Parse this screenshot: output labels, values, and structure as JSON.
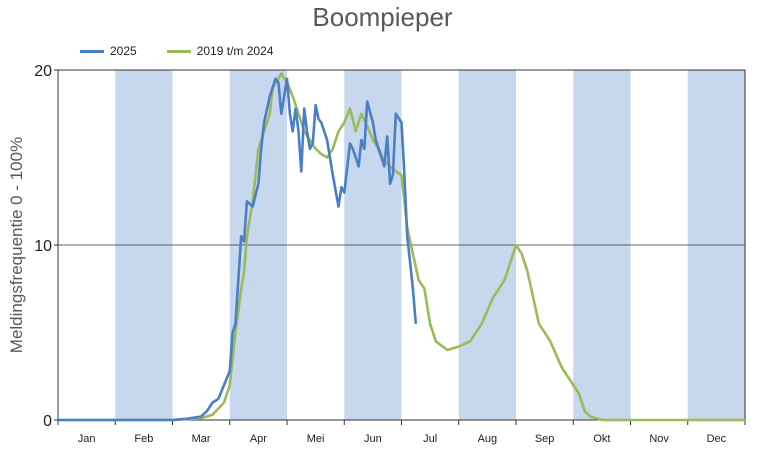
{
  "chart_data": {
    "type": "line",
    "title": "Boompieper",
    "xlabel": "",
    "ylabel": "Meldingsfrequentie 0 - 100%",
    "ylim": [
      0,
      20
    ],
    "yticks": [
      0,
      10,
      20
    ],
    "months": [
      "Jan",
      "Feb",
      "Mar",
      "Apr",
      "Mei",
      "Jun",
      "Jul",
      "Aug",
      "Sep",
      "Okt",
      "Nov",
      "Dec"
    ],
    "shaded_bands": "alternate months (Feb, Apr, Jun, Aug, Okt, Dec)",
    "band_color": "#c6d7ee",
    "grid": "horizontal line at 10",
    "legend_position": "top-left",
    "series": [
      {
        "name": "2025",
        "color": "#4a7ec6",
        "points": [
          [
            0,
            0
          ],
          [
            0.5,
            0
          ],
          [
            1,
            0
          ],
          [
            1.5,
            0
          ],
          [
            2,
            0
          ],
          [
            2.2,
            0.05
          ],
          [
            2.5,
            0.2
          ],
          [
            2.6,
            0.5
          ],
          [
            2.7,
            1
          ],
          [
            2.8,
            1.2
          ],
          [
            2.9,
            2
          ],
          [
            3,
            2.8
          ],
          [
            3.05,
            5
          ],
          [
            3.1,
            5.5
          ],
          [
            3.15,
            8
          ],
          [
            3.2,
            10.5
          ],
          [
            3.25,
            10.2
          ],
          [
            3.3,
            12.5
          ],
          [
            3.4,
            12.2
          ],
          [
            3.5,
            13.5
          ],
          [
            3.55,
            15.5
          ],
          [
            3.6,
            17
          ],
          [
            3.7,
            18.5
          ],
          [
            3.8,
            19.5
          ],
          [
            3.85,
            19.3
          ],
          [
            3.9,
            17.5
          ],
          [
            3.95,
            18.5
          ],
          [
            4,
            19.5
          ],
          [
            4.05,
            17.5
          ],
          [
            4.1,
            16.5
          ],
          [
            4.15,
            17.8
          ],
          [
            4.2,
            16.5
          ],
          [
            4.25,
            14.2
          ],
          [
            4.3,
            17.8
          ],
          [
            4.35,
            16.5
          ],
          [
            4.4,
            15.5
          ],
          [
            4.45,
            15.8
          ],
          [
            4.5,
            18
          ],
          [
            4.55,
            17.2
          ],
          [
            4.6,
            17
          ],
          [
            4.7,
            16
          ],
          [
            4.8,
            14
          ],
          [
            4.9,
            12.2
          ],
          [
            4.95,
            13.3
          ],
          [
            5,
            13
          ],
          [
            5.1,
            15.8
          ],
          [
            5.15,
            15.5
          ],
          [
            5.2,
            15
          ],
          [
            5.25,
            14.5
          ],
          [
            5.3,
            16
          ],
          [
            5.35,
            15.5
          ],
          [
            5.4,
            18.2
          ],
          [
            5.5,
            17
          ],
          [
            5.55,
            16
          ],
          [
            5.6,
            15.5
          ],
          [
            5.7,
            14.5
          ],
          [
            5.75,
            16.2
          ],
          [
            5.8,
            13.5
          ],
          [
            5.85,
            14
          ],
          [
            5.9,
            17.5
          ],
          [
            6,
            17
          ],
          [
            6.05,
            14
          ],
          [
            6.1,
            10.5
          ],
          [
            6.15,
            9
          ],
          [
            6.2,
            7.5
          ],
          [
            6.25,
            5.5
          ]
        ]
      },
      {
        "name": "2019 t/m 2024",
        "color": "#9bbb59",
        "points": [
          [
            0,
            0
          ],
          [
            1,
            0
          ],
          [
            2,
            0
          ],
          [
            2.2,
            0.05
          ],
          [
            2.5,
            0.1
          ],
          [
            2.7,
            0.3
          ],
          [
            2.9,
            1
          ],
          [
            3,
            2
          ],
          [
            3.1,
            5
          ],
          [
            3.2,
            7.5
          ],
          [
            3.25,
            8.5
          ],
          [
            3.3,
            10.5
          ],
          [
            3.4,
            12.5
          ],
          [
            3.5,
            15.5
          ],
          [
            3.6,
            16.5
          ],
          [
            3.7,
            17.5
          ],
          [
            3.75,
            19
          ],
          [
            3.85,
            19.5
          ],
          [
            3.9,
            19.8
          ],
          [
            4,
            19.3
          ],
          [
            4.1,
            18.5
          ],
          [
            4.2,
            17.5
          ],
          [
            4.3,
            16.5
          ],
          [
            4.5,
            15.5
          ],
          [
            4.6,
            15.2
          ],
          [
            4.7,
            15
          ],
          [
            4.8,
            15.5
          ],
          [
            4.9,
            16.5
          ],
          [
            5,
            17
          ],
          [
            5.1,
            17.8
          ],
          [
            5.2,
            16.5
          ],
          [
            5.3,
            17.5
          ],
          [
            5.4,
            16.8
          ],
          [
            5.5,
            16
          ],
          [
            5.6,
            15.5
          ],
          [
            5.7,
            14.8
          ],
          [
            5.8,
            14.5
          ],
          [
            5.9,
            14.2
          ],
          [
            6,
            14
          ],
          [
            6.1,
            11
          ],
          [
            6.2,
            9.5
          ],
          [
            6.3,
            8
          ],
          [
            6.4,
            7.5
          ],
          [
            6.5,
            5.5
          ],
          [
            6.6,
            4.5
          ],
          [
            6.8,
            4
          ],
          [
            7,
            4.2
          ],
          [
            7.2,
            4.5
          ],
          [
            7.3,
            5
          ],
          [
            7.4,
            5.5
          ],
          [
            7.6,
            7
          ],
          [
            7.7,
            7.5
          ],
          [
            7.8,
            8
          ],
          [
            7.9,
            9
          ],
          [
            8,
            10
          ],
          [
            8.1,
            9.5
          ],
          [
            8.2,
            8.5
          ],
          [
            8.3,
            7
          ],
          [
            8.4,
            5.5
          ],
          [
            8.5,
            5
          ],
          [
            8.6,
            4.5
          ],
          [
            8.8,
            3
          ],
          [
            9,
            2
          ],
          [
            9.1,
            1.5
          ],
          [
            9.2,
            0.5
          ],
          [
            9.3,
            0.2
          ],
          [
            9.5,
            0
          ],
          [
            10,
            0
          ],
          [
            11,
            0
          ],
          [
            12,
            0
          ]
        ]
      }
    ]
  }
}
